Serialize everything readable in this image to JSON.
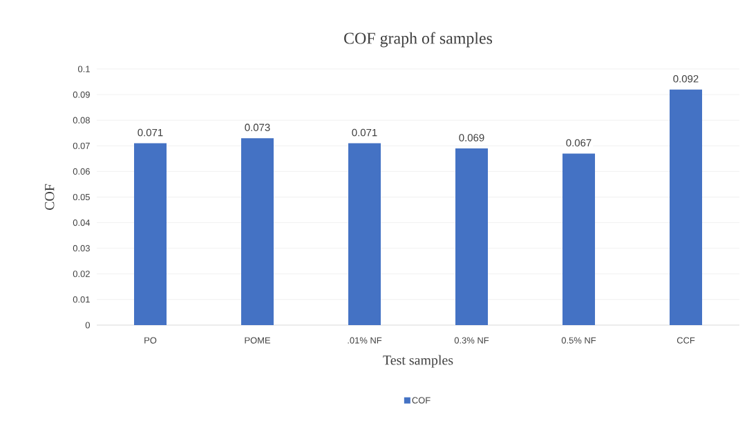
{
  "chart_data": {
    "type": "bar",
    "title": "COF graph of samples",
    "xlabel": "Test samples",
    "ylabel": "COF",
    "categories": [
      "PO",
      "POME",
      ".01% NF",
      "0.3% NF",
      "0.5% NF",
      "CCF"
    ],
    "series": [
      {
        "name": "COF",
        "color": "#4472c4",
        "values": [
          0.071,
          0.073,
          0.071,
          0.069,
          0.067,
          0.092
        ]
      }
    ],
    "ylim": [
      0,
      0.1
    ],
    "yticks": [
      0,
      0.01,
      0.02,
      0.03,
      0.04,
      0.05,
      0.06,
      0.07,
      0.08,
      0.09,
      0.1
    ],
    "grid": "y",
    "legend": "bottom",
    "data_labels": true
  }
}
